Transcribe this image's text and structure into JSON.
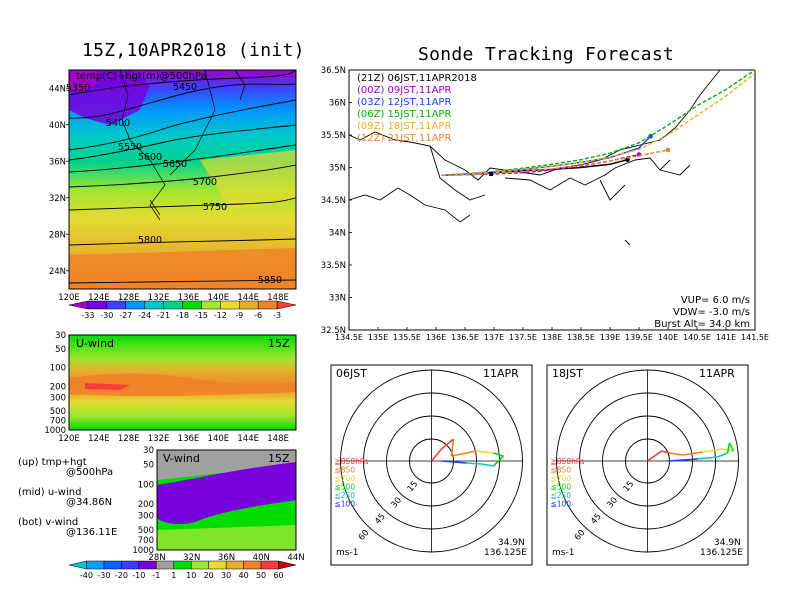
{
  "left": {
    "title": "15Z,10APR2018 (init)",
    "map": {
      "label": "temp(C)+hgt(m)@500hPa",
      "lat_ticks": [
        "44N",
        "40N",
        "36N",
        "32N",
        "28N",
        "24N"
      ],
      "lon_ticks": [
        "120E",
        "124E",
        "128E",
        "132E",
        "136E",
        "140E",
        "144E",
        "148E"
      ],
      "contour_labels": [
        "5350",
        "5400",
        "5450",
        "5550",
        "5600",
        "5650",
        "5700",
        "5750",
        "5800",
        "5850"
      ],
      "colorbar_ticks": [
        "-33",
        "-30",
        "-27",
        "-24",
        "-21",
        "-18",
        "-15",
        "-12",
        "-9",
        "-6",
        "-3"
      ],
      "colorbar_colors": [
        "#a000c8",
        "#7800dc",
        "#4040ff",
        "#0096ff",
        "#00c8c8",
        "#00d28c",
        "#00dc00",
        "#a0e632",
        "#e6dc32",
        "#e6af2d",
        "#f08228",
        "#fa3c3c"
      ]
    },
    "uwind": {
      "label": "U-wind",
      "time": "15Z",
      "p_ticks": [
        "30",
        "50",
        "100",
        "200",
        "300",
        "500",
        "700",
        "1000"
      ],
      "lon_ticks": [
        "120E",
        "124E",
        "128E",
        "132E",
        "136E",
        "140E",
        "144E",
        "148E"
      ]
    },
    "vwind": {
      "label": "V-wind",
      "time": "15Z",
      "p_ticks": [
        "30",
        "50",
        "100",
        "200",
        "300",
        "500",
        "700",
        "1000"
      ],
      "lat_ticks": [
        "28N",
        "32N",
        "36N",
        "40N",
        "44N"
      ]
    },
    "notes": [
      {
        "a": "(up) tmp+hgt",
        "b": "@500hPa"
      },
      {
        "a": "(mid) u-wind",
        "b": "@34.86N"
      },
      {
        "a": "(bot) v-wind",
        "b": "@136.11E"
      }
    ],
    "wind_colorbar_ticks": [
      "-40",
      "-30",
      "-20",
      "-10",
      "-1",
      "1",
      "10",
      "20",
      "30",
      "40",
      "50",
      "60"
    ],
    "wind_colorbar_colors": [
      "#00c8c8",
      "#00a0ff",
      "#0064ff",
      "#3c3cff",
      "#7800dc",
      "#a0a0a0",
      "#00dc00",
      "#a0e632",
      "#e6dc32",
      "#e6af2d",
      "#f08228",
      "#fa3c3c",
      "#c80000"
    ]
  },
  "right": {
    "title": "Sonde Tracking Forecast",
    "lat_ticks": [
      "36.5N",
      "36N",
      "35.5N",
      "35N",
      "34.5N",
      "34N",
      "33.5N",
      "33N",
      "32.5N"
    ],
    "lon_ticks": [
      "134.5E",
      "135E",
      "135.5E",
      "136E",
      "136.5E",
      "137E",
      "137.5E",
      "138E",
      "138.5E",
      "139E",
      "139.5E",
      "140E",
      "140.5E",
      "141E",
      "141.5E"
    ],
    "legend": [
      {
        "text": "(21Z)  06JST,11APR2018",
        "color": "#000000"
      },
      {
        "text": "(00Z)  09JST,11APR",
        "color": "#a000c8"
      },
      {
        "text": "(03Z)  12JST,11APR",
        "color": "#1e3cff"
      },
      {
        "text": "(06Z)  15JST,11APR",
        "color": "#00b400"
      },
      {
        "text": "(09Z)  18JST,11APR",
        "color": "#e6af2d"
      },
      {
        "text": "(12Z)  21JST,11APR",
        "color": "#f08228"
      }
    ],
    "params": [
      "VUP=  6.0  m/s",
      "VDW= -3.0  m/s",
      "Burst Alt=  34.0  km"
    ],
    "hodographs": [
      {
        "time": "06JST",
        "date": "11APR",
        "lat": "34.9N",
        "lon": "136.125E",
        "unit": "ms-1",
        "ring_labels": [
          "15",
          "30",
          "45",
          "60"
        ],
        "levels": [
          "≧850hPa",
          "≦850",
          "≦700",
          "≦500",
          "≦250",
          "≦100"
        ],
        "level_colors": [
          "#fa3c3c",
          "#f08228",
          "#e6dc32",
          "#00dc00",
          "#00c8c8",
          "#1e3cff"
        ]
      },
      {
        "time": "18JST",
        "date": "11APR",
        "lat": "34.9N",
        "lon": "136.125E",
        "unit": "ms-1",
        "ring_labels": [
          "15",
          "30",
          "45",
          "60"
        ],
        "levels": [
          "≧850hPa",
          "≦850",
          "≦700",
          "≦500",
          "≦250",
          "≦100"
        ],
        "level_colors": [
          "#fa3c3c",
          "#f08228",
          "#e6dc32",
          "#00dc00",
          "#00c8c8",
          "#1e3cff"
        ]
      }
    ]
  },
  "chart_data": [
    {
      "type": "heatmap",
      "title": "15Z,10APR2018 (init)",
      "subtitle": "temp(C)+hgt(m)@500hPa",
      "x": [
        "120E",
        "124E",
        "128E",
        "132E",
        "136E",
        "140E",
        "144E",
        "148E"
      ],
      "y": [
        "24N",
        "28N",
        "32N",
        "36N",
        "40N",
        "44N"
      ],
      "contours": [
        5350,
        5400,
        5450,
        5550,
        5600,
        5650,
        5700,
        5750,
        5800,
        5850
      ]
    },
    {
      "type": "heatmap",
      "title": "U-wind",
      "x": [
        "120E",
        "124E",
        "128E",
        "132E",
        "136E",
        "140E",
        "144E",
        "148E"
      ],
      "y": [
        "30",
        "50",
        "100",
        "200",
        "300",
        "500",
        "700",
        "1000"
      ]
    },
    {
      "type": "heatmap",
      "title": "V-wind",
      "x": [
        "28N",
        "32N",
        "36N",
        "40N",
        "44N"
      ],
      "y": [
        "30",
        "50",
        "100",
        "200",
        "300",
        "500",
        "700",
        "1000"
      ]
    },
    {
      "type": "line",
      "title": "Sonde Tracking Forecast",
      "xlim": [
        134.5,
        141.5
      ],
      "ylim": [
        32.5,
        36.5
      ],
      "series": [
        {
          "name": "(21Z)  06JST,11APR2018",
          "x": [
            136.1,
            136.6,
            137.0,
            137.5,
            138.0,
            138.5,
            139.0,
            139.3
          ],
          "y": [
            34.88,
            34.9,
            34.92,
            34.95,
            34.97,
            35.0,
            35.05,
            35.12
          ]
        },
        {
          "name": "(00Z)  09JST,11APR",
          "x": [
            136.1,
            136.6,
            137.0,
            137.5,
            138.0,
            138.5,
            139.0,
            139.5
          ],
          "y": [
            34.88,
            34.89,
            34.9,
            34.92,
            34.96,
            35.02,
            35.1,
            35.2
          ]
        },
        {
          "name": "(03Z)  12JST,11APR",
          "x": [
            136.1,
            136.6,
            137.0,
            137.5,
            138.0,
            138.5,
            139.0,
            139.5,
            139.7
          ],
          "y": [
            34.88,
            34.9,
            34.93,
            34.97,
            35.02,
            35.08,
            35.15,
            35.3,
            35.48
          ]
        },
        {
          "name": "(06Z)  15JST,11APR",
          "x": [
            136.1,
            136.6,
            137.0,
            137.5,
            138.0,
            138.5,
            139.0,
            139.5,
            140.0,
            140.5,
            141.0,
            141.5
          ],
          "y": [
            34.88,
            34.91,
            34.94,
            34.99,
            35.05,
            35.12,
            35.22,
            35.38,
            35.65,
            35.95,
            36.2,
            36.5
          ]
        },
        {
          "name": "(09Z)  18JST,11APR",
          "x": [
            136.1,
            136.6,
            137.0,
            137.5,
            138.0,
            138.5,
            139.0,
            139.5,
            140.0,
            140.5,
            141.0,
            141.5
          ],
          "y": [
            34.88,
            34.9,
            34.93,
            34.97,
            35.02,
            35.08,
            35.16,
            35.28,
            35.5,
            35.8,
            36.1,
            36.45
          ]
        },
        {
          "name": "(12Z)  21JST,11APR",
          "x": [
            136.1,
            136.6,
            137.0,
            137.5,
            138.0,
            138.5,
            139.0,
            139.5,
            140.0
          ],
          "y": [
            34.88,
            34.89,
            34.91,
            34.94,
            34.98,
            35.03,
            35.1,
            35.18,
            35.27
          ]
        }
      ]
    }
  ]
}
